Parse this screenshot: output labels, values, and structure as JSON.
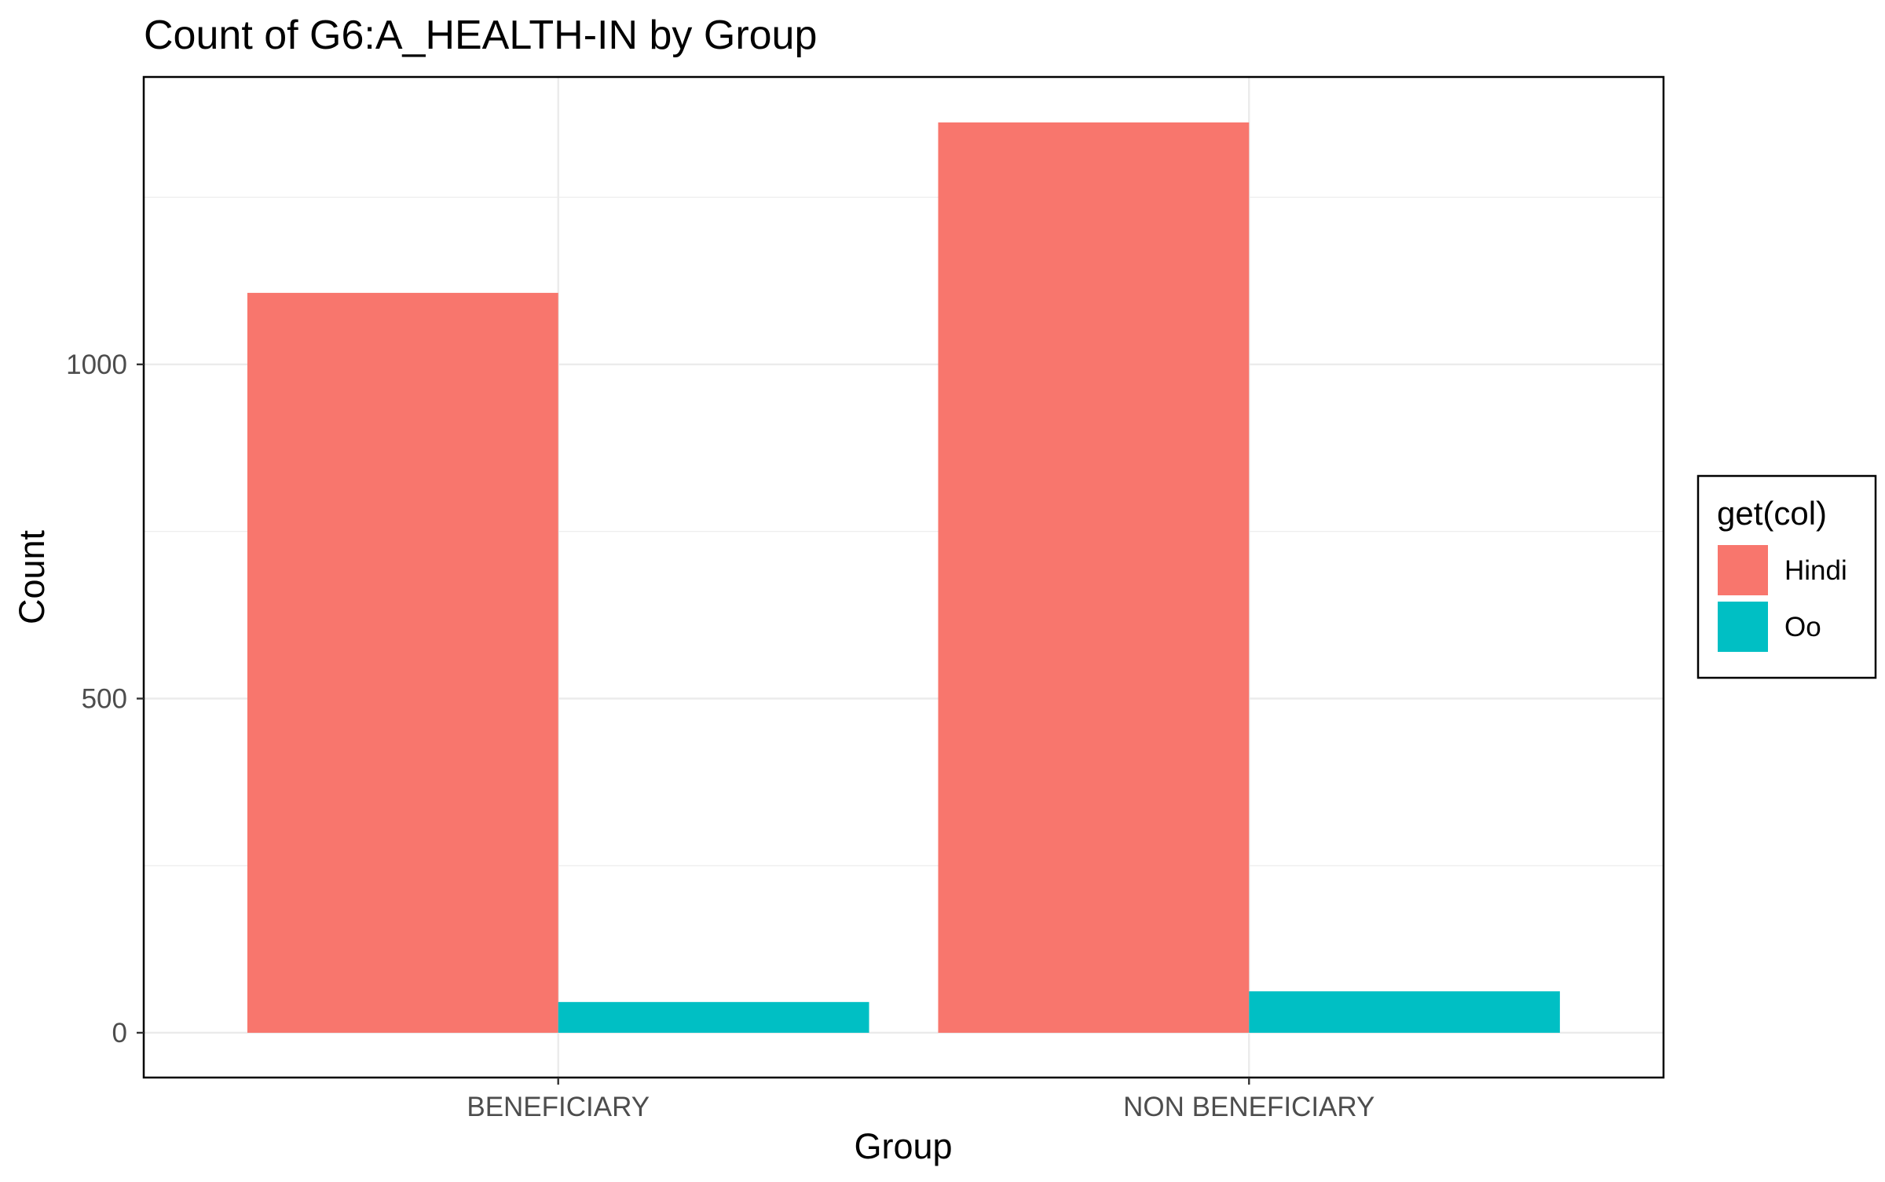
{
  "chart_data": {
    "type": "bar",
    "title": "Count of G6:A_HEALTH-IN by Group",
    "xlabel": "Group",
    "ylabel": "Count",
    "categories": [
      "BENEFICIARY",
      "NON BENEFICIARY"
    ],
    "series": [
      {
        "name": "Hindi",
        "color": "#F8766D",
        "values": [
          1107,
          1362
        ]
      },
      {
        "name": "Oo",
        "color": "#00BFC4",
        "values": [
          46,
          62
        ]
      }
    ],
    "ylim": [
      -67,
      1430
    ],
    "yticks": [
      0,
      500,
      1000
    ],
    "y_minor_ticks": [
      250,
      750,
      1250
    ],
    "yticks_labels": [
      "0",
      "500",
      "1000"
    ],
    "grid": true,
    "legend": {
      "title": "get(col)",
      "position": "right"
    }
  }
}
